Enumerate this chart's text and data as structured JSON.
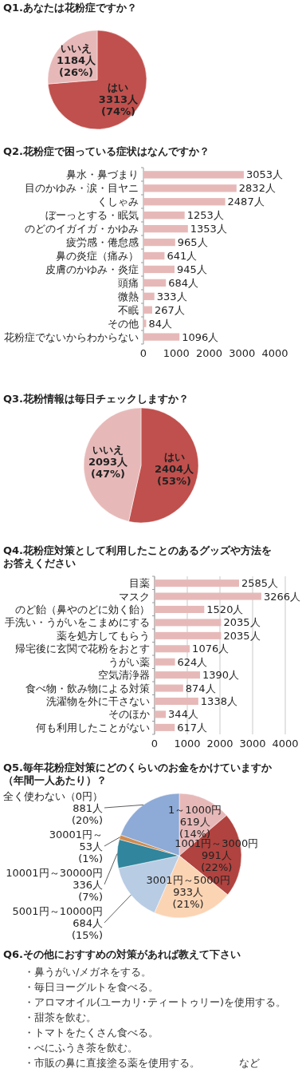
{
  "chart_data": [
    {
      "type": "pie",
      "title": "Q1.あなたは花粉症ですか？",
      "categories": [
        "はい",
        "いいえ"
      ],
      "values": [
        3313,
        1184
      ],
      "colors": [
        "#c0504d",
        "#e6b9b8"
      ],
      "value_labels": [
        "3313人\n(74%)",
        "1184人\n(26%)"
      ]
    },
    {
      "type": "bar",
      "orientation": "horizontal",
      "title": "Q2.花粉症で困っている症状はなんですか？",
      "categories": [
        "鼻水・鼻づまり",
        "目のかゆみ・涙・目ヤニ",
        "くしゃみ",
        "ぼーっとする・眠気",
        "のどのイガイガ・かゆみ",
        "疲労感・倦怠感",
        "鼻の炎症（痛み）",
        "皮膚のかゆみ・炎症",
        "頭痛",
        "微熱",
        "不眠",
        "その他",
        "花粉症でないからわからない"
      ],
      "values": [
        3053,
        2832,
        2487,
        1253,
        1353,
        965,
        641,
        945,
        684,
        333,
        267,
        84,
        1096
      ],
      "color": "#e6b9b8",
      "value_labels": [
        "3053人",
        "2832人",
        "2487人",
        "1253人",
        "1353人",
        "965人",
        "641人",
        "945人",
        "684人",
        "333人",
        "267人",
        "84人",
        "1096人"
      ],
      "xlim": [
        0,
        4000
      ],
      "xticks": [
        0,
        1000,
        2000,
        3000,
        4000
      ]
    },
    {
      "type": "pie",
      "title": "Q3.花粉情報は毎日チェックしますか？",
      "categories": [
        "はい",
        "いいえ"
      ],
      "values": [
        2404,
        2093
      ],
      "colors": [
        "#c0504d",
        "#e6b9b8"
      ],
      "value_labels": [
        "2404人\n(53%)",
        "2093人\n(47%)"
      ]
    },
    {
      "type": "bar",
      "orientation": "horizontal",
      "title": "Q4.花粉症対策として利用したことのあるグッズや方法をお答えください",
      "categories": [
        "目薬",
        "マスク",
        "のど飴（鼻やのどに効く飴）",
        "手洗い・うがいをこまめにする",
        "薬を処方してもらう",
        "帰宅後に玄関で花粉をおとす",
        "うがい薬",
        "空気清浄器",
        "食べ物・飲み物による対策",
        "洗濯物を外に干さない",
        "そのほか",
        "何も利用したことがない"
      ],
      "values": [
        2585,
        3266,
        1520,
        2035,
        2035,
        1076,
        624,
        1390,
        874,
        1338,
        344,
        617
      ],
      "color": "#e6b9b8",
      "value_labels": [
        "2585人",
        "3266人",
        "1520人",
        "2035人",
        "2035人",
        "1076人",
        "624人",
        "1390人",
        "874人",
        "1338人",
        "344人",
        "617人"
      ],
      "xlim": [
        0,
        4000
      ],
      "xticks": [
        0,
        1000,
        2000,
        3000,
        4000
      ],
      "grid": "x"
    },
    {
      "type": "pie",
      "title": "Q5.毎年花粉症対策にどのくらいのお金をかけていますか（年間一人あたり）？",
      "categories": [
        "1～1000円",
        "1001円～3000円",
        "3001円～5000円",
        "5001円～10000円",
        "10001円～30000円",
        "30001円～",
        "全く使わない（0円）"
      ],
      "values": [
        619,
        991,
        933,
        684,
        336,
        53,
        881
      ],
      "colors": [
        "#e6b9b8",
        "#b0433f",
        "#fbd4b4",
        "#b8cce4",
        "#31859c",
        "#d08b4e",
        "#8eaad6"
      ],
      "value_labels": [
        "619人\n(14%)",
        "991人\n(22%)",
        "933人\n(21%)",
        "684人\n(15%)",
        "336人\n(7%)",
        "53人\n(1%)",
        "881人\n(20%)"
      ]
    },
    {
      "type": "other",
      "title": "Q6.その他におすすめの対策があれば教えて下さい",
      "annotations": [
        "・鼻うがい/メガネをする。",
        "・毎日ヨーグルトを食べる。",
        "・アロマオイル(ユーカリ･ティートゥリー)を使用する。",
        "・甜茶を飲む。",
        "・トマトをたくさん食べる。",
        "・べにふうき茶を飲む。",
        "・市販の鼻に直接塗る薬を使用する。",
        "など"
      ]
    }
  ]
}
